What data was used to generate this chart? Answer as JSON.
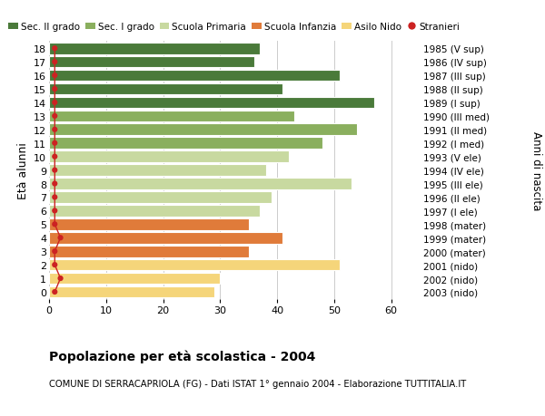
{
  "ages": [
    0,
    1,
    2,
    3,
    4,
    5,
    6,
    7,
    8,
    9,
    10,
    11,
    12,
    13,
    14,
    15,
    16,
    17,
    18
  ],
  "right_labels": [
    "2003 (nido)",
    "2002 (nido)",
    "2001 (nido)",
    "2000 (mater)",
    "1999 (mater)",
    "1998 (mater)",
    "1997 (I ele)",
    "1996 (II ele)",
    "1995 (III ele)",
    "1994 (IV ele)",
    "1993 (V ele)",
    "1992 (I med)",
    "1991 (II med)",
    "1990 (III med)",
    "1989 (I sup)",
    "1988 (II sup)",
    "1987 (III sup)",
    "1986 (IV sup)",
    "1985 (V sup)"
  ],
  "values": [
    29,
    30,
    51,
    35,
    41,
    35,
    37,
    39,
    53,
    38,
    42,
    48,
    54,
    43,
    57,
    41,
    51,
    36,
    37
  ],
  "stranieri": [
    1,
    2,
    1,
    1,
    2,
    1,
    1,
    1,
    1,
    1,
    1,
    1,
    1,
    1,
    1,
    1,
    1,
    1,
    1
  ],
  "colors": [
    "#F5D57A",
    "#F5D57A",
    "#F5D57A",
    "#E07B3A",
    "#E07B3A",
    "#E07B3A",
    "#C8D9A0",
    "#C8D9A0",
    "#C8D9A0",
    "#C8D9A0",
    "#C8D9A0",
    "#8AAF5E",
    "#8AAF5E",
    "#8AAF5E",
    "#4A7A3A",
    "#4A7A3A",
    "#4A7A3A",
    "#4A7A3A",
    "#4A7A3A"
  ],
  "legend_labels": [
    "Sec. II grado",
    "Sec. I grado",
    "Scuola Primaria",
    "Scuola Infanzia",
    "Asilo Nido",
    "Stranieri"
  ],
  "legend_colors": [
    "#4A7A3A",
    "#8AAF5E",
    "#C8D9A0",
    "#E07B3A",
    "#F5D57A",
    "#CC2222"
  ],
  "ylabel_left": "Età alunni",
  "ylabel_right": "Anni di nascita",
  "xlim": [
    0,
    65
  ],
  "xticks": [
    0,
    10,
    20,
    30,
    40,
    50,
    60
  ],
  "title_bold": "Popolazione per età scolastica - 2004",
  "subtitle": "COMUNE DI SERRACAPRIOLA (FG) - Dati ISTAT 1° gennaio 2004 - Elaborazione TUTTITALIA.IT",
  "bg_color": "#FFFFFF",
  "bar_height": 0.85,
  "grid_color": "#CCCCCC",
  "stranieri_color": "#CC2222",
  "stranieri_line_color": "#CC2222"
}
